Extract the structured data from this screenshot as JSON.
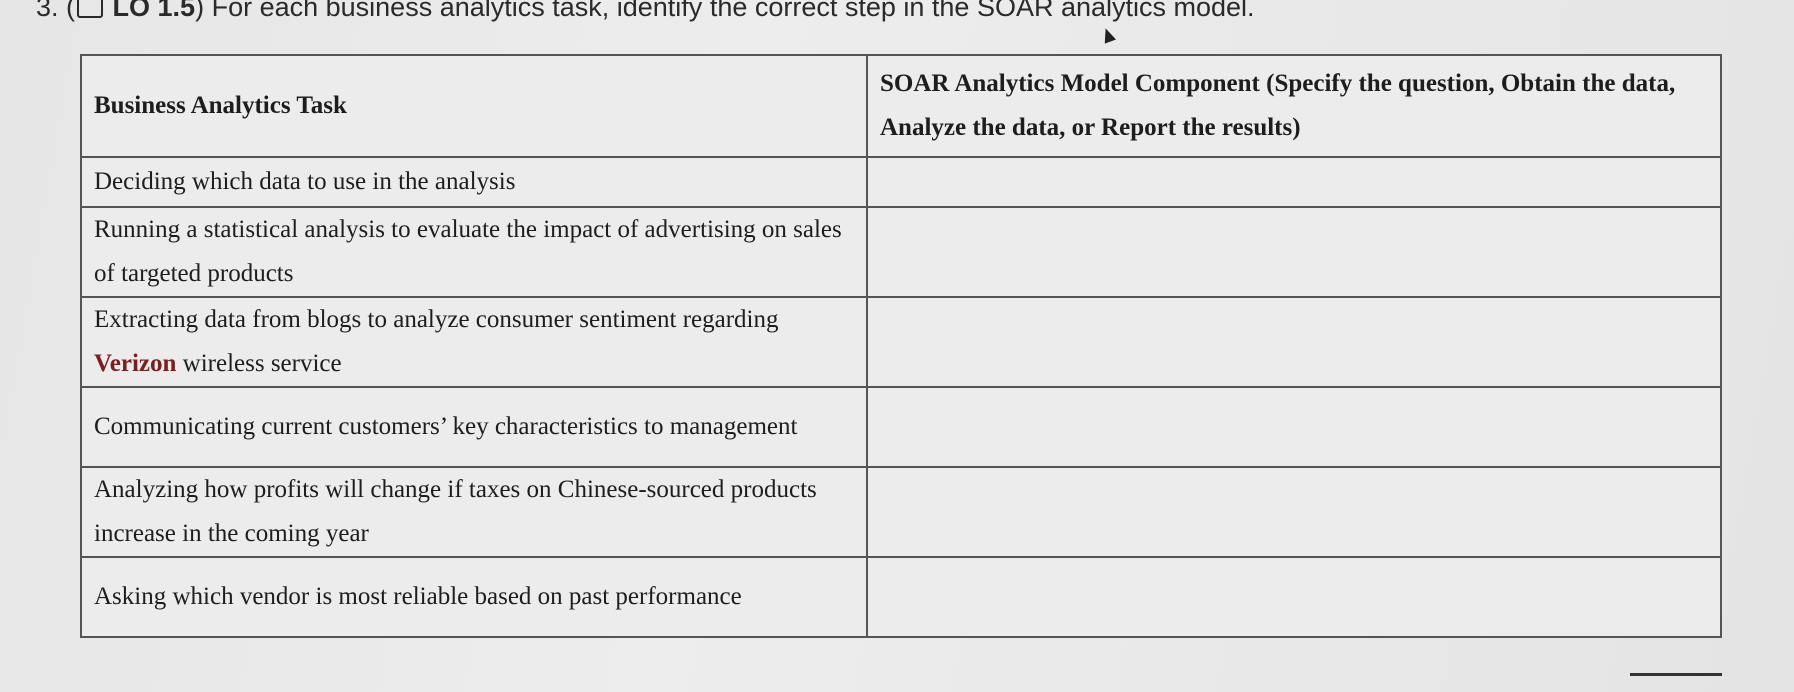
{
  "question": {
    "number": "3.",
    "icon": "external-link-icon",
    "objective": "LO 1.5",
    "text": "For each business analytics task, identify the correct step in the SOAR analytics model."
  },
  "table": {
    "headers": [
      "Business Analytics Task",
      "SOAR Analytics Model Component (Specify the question, Obtain the data, Analyze the data, or Report the results)"
    ],
    "rows": [
      {
        "task": "Deciding which data to use in the analysis",
        "answer": ""
      },
      {
        "task": "Running a statistical analysis to evaluate the impact of advertising on sales of targeted products",
        "answer": ""
      },
      {
        "task_before": "Extracting data from blogs to analyze consumer sentiment regarding ",
        "task_highlight": "Verizon",
        "task_after": " wireless service",
        "answer": ""
      },
      {
        "task": "Communicating current customers’ key characteristics to management",
        "answer": ""
      },
      {
        "task": "Analyzing how profits will change if taxes on Chinese-sourced products increase in the coming year",
        "answer": ""
      },
      {
        "task": "Asking which vendor is most reliable based on past performance",
        "answer": ""
      }
    ]
  },
  "colors": {
    "highlight": "#7a1f1f"
  }
}
